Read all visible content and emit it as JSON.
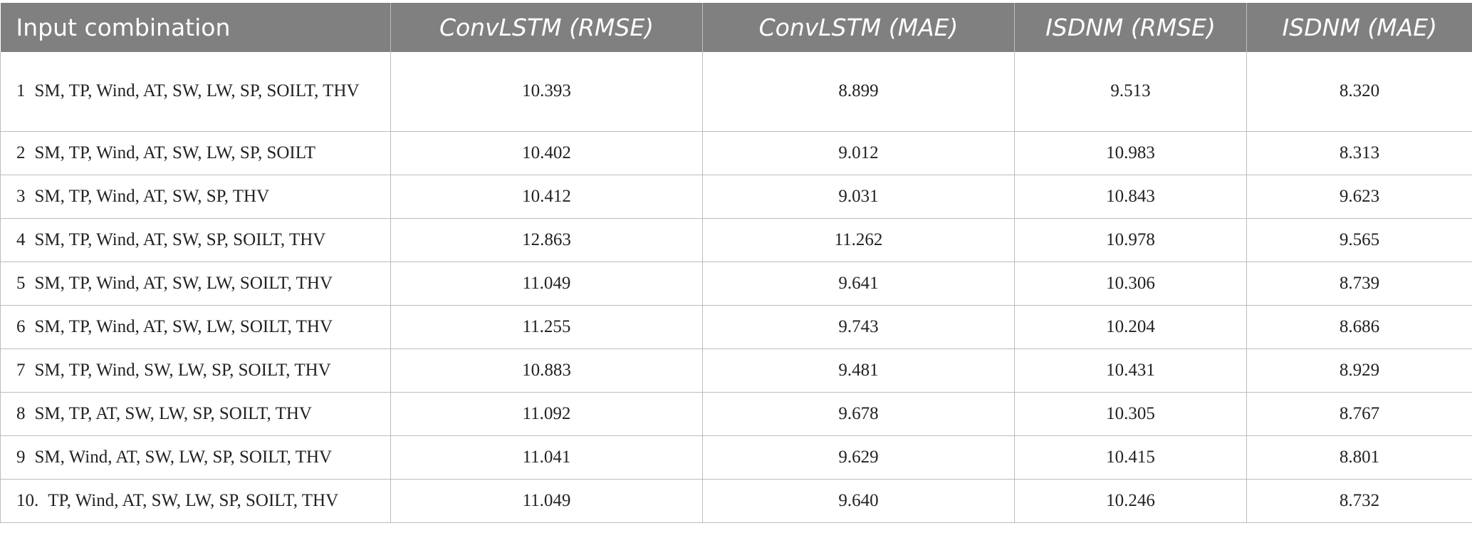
{
  "table": {
    "headers": [
      {
        "text": "Input combination"
      },
      {
        "model": "ConvLSTM",
        "metric": "(RMSE)"
      },
      {
        "model": "ConvLSTM",
        "metric": "(MAE)"
      },
      {
        "model": "ISDNM",
        "metric": "(RMSE)"
      },
      {
        "model": "ISDNM",
        "metric": "(MAE)"
      }
    ],
    "rows": [
      {
        "num": "1",
        "inputs": "SM, TP, Wind, AT, SW, LW, SP, SOILT, THV",
        "convlstm_rmse": "10.393",
        "convlstm_mae": "8.899",
        "isdnm_rmse": "9.513",
        "isdnm_mae": "8.320"
      },
      {
        "num": "2",
        "inputs": "SM, TP, Wind, AT, SW, LW, SP, SOILT",
        "convlstm_rmse": "10.402",
        "convlstm_mae": "9.012",
        "isdnm_rmse": "10.983",
        "isdnm_mae": "8.313"
      },
      {
        "num": "3",
        "inputs": "SM, TP, Wind, AT, SW, SP, THV",
        "convlstm_rmse": "10.412",
        "convlstm_mae": "9.031",
        "isdnm_rmse": "10.843",
        "isdnm_mae": "9.623"
      },
      {
        "num": "4",
        "inputs": "SM, TP, Wind, AT, SW, SP, SOILT, THV",
        "convlstm_rmse": "12.863",
        "convlstm_mae": "11.262",
        "isdnm_rmse": "10.978",
        "isdnm_mae": "9.565"
      },
      {
        "num": "5",
        "inputs": "SM, TP, Wind, AT, SW, LW, SOILT, THV",
        "convlstm_rmse": "11.049",
        "convlstm_mae": "9.641",
        "isdnm_rmse": "10.306",
        "isdnm_mae": "8.739"
      },
      {
        "num": "6",
        "inputs": "SM, TP, Wind, AT, SW, LW, SOILT, THV",
        "convlstm_rmse": "11.255",
        "convlstm_mae": "9.743",
        "isdnm_rmse": "10.204",
        "isdnm_mae": "8.686"
      },
      {
        "num": "7",
        "inputs": "SM, TP, Wind, SW, LW, SP, SOILT, THV",
        "convlstm_rmse": "10.883",
        "convlstm_mae": "9.481",
        "isdnm_rmse": "10.431",
        "isdnm_mae": "8.929"
      },
      {
        "num": "8",
        "inputs": "SM, TP, AT, SW, LW, SP, SOILT, THV",
        "convlstm_rmse": "11.092",
        "convlstm_mae": "9.678",
        "isdnm_rmse": "10.305",
        "isdnm_mae": "8.767"
      },
      {
        "num": "9",
        "inputs": "SM, Wind, AT, SW, LW, SP, SOILT, THV",
        "convlstm_rmse": "11.041",
        "convlstm_mae": "9.629",
        "isdnm_rmse": "10.415",
        "isdnm_mae": "8.801"
      },
      {
        "num": "10.",
        "inputs": "TP, Wind, AT, SW, LW, SP, SOILT, THV",
        "convlstm_rmse": "11.049",
        "convlstm_mae": "9.640",
        "isdnm_rmse": "10.246",
        "isdnm_mae": "8.732"
      }
    ]
  }
}
